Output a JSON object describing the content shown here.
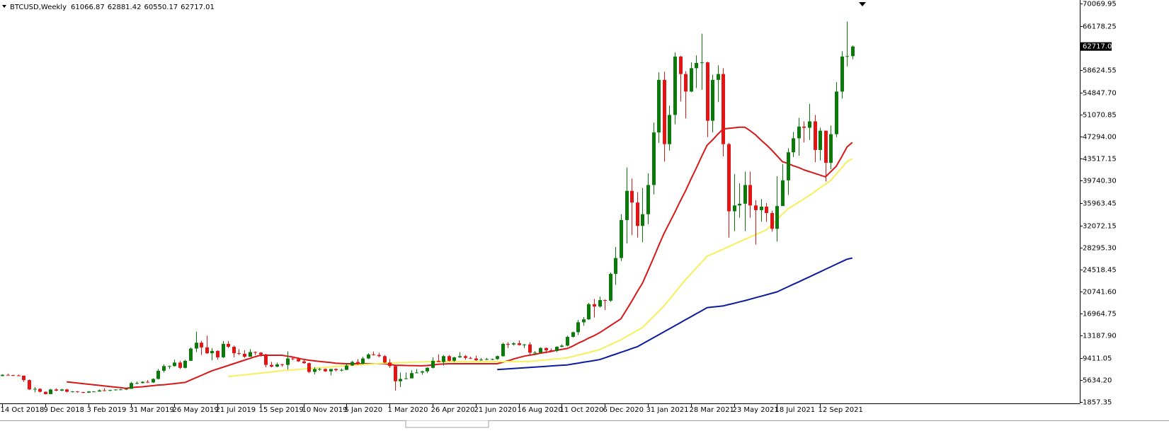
{
  "chart_data": {
    "type": "candlestick",
    "symbol": "BTCUSD,Weekly",
    "up_color": "#0b7a0b",
    "down_color": "#e31414",
    "categories": [
      "14 Oct 2018",
      null,
      null,
      null,
      null,
      null,
      null,
      null,
      "9 Dec 2018",
      null,
      null,
      null,
      null,
      null,
      null,
      null,
      "3 Feb 2019",
      null,
      null,
      null,
      null,
      null,
      null,
      null,
      "31 Mar 2019",
      null,
      null,
      null,
      null,
      null,
      null,
      null,
      "26 May 2019",
      null,
      null,
      null,
      null,
      null,
      null,
      null,
      "21 Jul 2019",
      null,
      null,
      null,
      null,
      null,
      null,
      null,
      "15 Sep 2019",
      null,
      null,
      null,
      null,
      null,
      null,
      null,
      "10 Nov 2019",
      null,
      null,
      null,
      null,
      null,
      null,
      null,
      "5 Jan 2020",
      null,
      null,
      null,
      null,
      null,
      null,
      null,
      "1 Mar 2020",
      null,
      null,
      null,
      null,
      null,
      null,
      null,
      "26 Apr 2020",
      null,
      null,
      null,
      null,
      null,
      null,
      null,
      "21 Jun 2020",
      null,
      null,
      null,
      null,
      null,
      null,
      null,
      "16 Aug 2020",
      null,
      null,
      null,
      null,
      null,
      null,
      null,
      "11 Oct 2020",
      null,
      null,
      null,
      null,
      null,
      null,
      null,
      "6 Dec 2020",
      null,
      null,
      null,
      null,
      null,
      null,
      null,
      "31 Jan 2021",
      null,
      null,
      null,
      null,
      null,
      null,
      null,
      "28 Mar 2021",
      null,
      null,
      null,
      null,
      null,
      null,
      null,
      "23 May 2021",
      null,
      null,
      null,
      null,
      null,
      null,
      null,
      "18 Jul 2021",
      null,
      null,
      null,
      null,
      null,
      null,
      null,
      "12 Sep 2021",
      null,
      null,
      null,
      null,
      null,
      null
    ],
    "open": [
      6300,
      6500,
      6450,
      6400,
      6350,
      5600,
      4000,
      4100,
      3600,
      3200,
      4000,
      3800,
      4000,
      3600,
      3650,
      3550,
      3450,
      3650,
      3650,
      3850,
      3800,
      3900,
      4000,
      4000,
      4100,
      5100,
      5100,
      5300,
      5200,
      5800,
      7200,
      8000,
      8000,
      8600,
      7700,
      8900,
      11000,
      12000,
      11200,
      10200,
      10600,
      9500,
      11800,
      11300,
      10200,
      10100,
      9600,
      10400,
      10300,
      10000,
      8200,
      7900,
      8300,
      8200,
      9300,
      9200,
      8800,
      8500,
      7000,
      7500,
      7500,
      7100,
      7500,
      7300,
      7350,
      8100,
      8700,
      8400,
      9300,
      10000,
      9900,
      9700,
      8600,
      8000,
      5400,
      5800,
      5900,
      6800,
      6900,
      7100,
      7700,
      8900,
      8700,
      9700,
      8900,
      9500,
      9700,
      9400,
      9300,
      9000,
      9100,
      9200,
      9200,
      9700,
      11800,
      11700,
      11900,
      11600,
      11700,
      10300,
      10300,
      11100,
      10700,
      10600,
      11300,
      11500,
      13000,
      13800,
      15500,
      16000,
      18600,
      18200,
      19300,
      19200,
      23800,
      26500,
      33000,
      38000,
      36000,
      32000,
      34000,
      39000,
      48000,
      57000,
      46000,
      51000,
      61000,
      58000,
      55000,
      59000,
      59900,
      60000,
      50000,
      57000,
      58000,
      46000,
      34500,
      35500,
      35800,
      39000,
      35500,
      34700,
      35300,
      34200,
      31500,
      35400,
      39800,
      44600,
      47000,
      49000,
      48800,
      49900,
      45000,
      48300,
      42800,
      47700,
      55000,
      61000,
      61066.87
    ],
    "high": [
      6600,
      6700,
      6500,
      6550,
      6400,
      5700,
      4400,
      4200,
      3650,
      4100,
      4200,
      4100,
      4100,
      3700,
      3700,
      3600,
      3700,
      3700,
      4000,
      4200,
      3950,
      4000,
      4100,
      4100,
      5300,
      5350,
      5400,
      5600,
      5900,
      7500,
      8300,
      8100,
      9100,
      8900,
      9100,
      11200,
      13900,
      12300,
      13200,
      11100,
      10700,
      12300,
      12300,
      11500,
      10900,
      10700,
      10900,
      10500,
      10400,
      10100,
      8700,
      8600,
      8400,
      10500,
      9500,
      9500,
      9000,
      8600,
      7800,
      7700,
      7600,
      7500,
      7600,
      7600,
      8400,
      8900,
      9200,
      9600,
      10200,
      10500,
      10300,
      9900,
      9200,
      8200,
      6900,
      6900,
      7300,
      7500,
      7200,
      7800,
      9500,
      10000,
      9900,
      9900,
      9600,
      10400,
      9900,
      9600,
      9800,
      9400,
      9400,
      9300,
      9800,
      12000,
      12100,
      12100,
      12400,
      11800,
      12100,
      10600,
      11200,
      11200,
      11000,
      11400,
      11700,
      13200,
      13900,
      15900,
      16400,
      18800,
      19500,
      19900,
      19400,
      24000,
      28400,
      34000,
      42000,
      40100,
      37800,
      38500,
      41000,
      49700,
      58300,
      58400,
      52600,
      61700,
      61100,
      58500,
      60000,
      61200,
      64900,
      60100,
      57900,
      59500,
      59000,
      46200,
      40900,
      39300,
      41300,
      41300,
      36400,
      36600,
      35900,
      34600,
      40500,
      42600,
      45300,
      48100,
      50500,
      49900,
      52900,
      51000,
      48800,
      48300,
      49200,
      56600,
      61900,
      67000,
      62881.42
    ],
    "low": [
      6250,
      6400,
      6300,
      6300,
      5300,
      3900,
      3500,
      3500,
      3150,
      3200,
      3700,
      3700,
      3500,
      3500,
      3450,
      3350,
      3400,
      3550,
      3600,
      3700,
      3700,
      3800,
      3900,
      3900,
      4100,
      4900,
      5000,
      5100,
      5100,
      5700,
      6900,
      7500,
      7900,
      7500,
      7600,
      8900,
      10400,
      9900,
      10100,
      9000,
      9100,
      9400,
      11100,
      9500,
      9900,
      9400,
      9600,
      9900,
      9600,
      7800,
      7800,
      7800,
      7900,
      7400,
      9000,
      8700,
      8400,
      6800,
      6600,
      7200,
      7000,
      6400,
      7100,
      7100,
      7300,
      8000,
      8200,
      8300,
      9200,
      9800,
      9500,
      8500,
      7700,
      3800,
      4400,
      5700,
      5900,
      6800,
      6500,
      6800,
      7600,
      8700,
      8100,
      8800,
      8700,
      9400,
      9100,
      9200,
      8900,
      8900,
      9000,
      9000,
      9100,
      9600,
      11100,
      11500,
      11500,
      11100,
      9900,
      9900,
      10200,
      10200,
      10500,
      10400,
      11200,
      11400,
      12900,
      13300,
      14900,
      15900,
      16300,
      18000,
      17600,
      19000,
      21900,
      26000,
      29000,
      30400,
      30000,
      29200,
      32300,
      37400,
      46200,
      43000,
      44900,
      49400,
      53300,
      50400,
      54900,
      55600,
      55300,
      47200,
      48000,
      53200,
      43900,
      30000,
      31100,
      33400,
      31100,
      33400,
      28800,
      32700,
      32700,
      31000,
      29300,
      35400,
      37300,
      43800,
      44000,
      46300,
      46700,
      42900,
      43200,
      39600,
      41700,
      47200,
      53800,
      59300,
      60550.17
    ],
    "close": [
      6500,
      6450,
      6400,
      6350,
      5600,
      4000,
      4100,
      3600,
      3200,
      4000,
      3800,
      4000,
      3600,
      3650,
      3550,
      3450,
      3650,
      3650,
      3850,
      3800,
      3900,
      4000,
      4000,
      4100,
      5100,
      5100,
      5300,
      5200,
      5800,
      7200,
      8000,
      8000,
      8600,
      7700,
      8900,
      11000,
      12000,
      11200,
      10200,
      10600,
      9500,
      11800,
      11300,
      10200,
      10100,
      9600,
      10400,
      10300,
      10000,
      8200,
      7900,
      8300,
      8200,
      9300,
      9200,
      8800,
      8500,
      7000,
      7500,
      7500,
      7100,
      7500,
      7300,
      7350,
      8100,
      8700,
      8400,
      9300,
      10000,
      9900,
      9700,
      8600,
      8000,
      5400,
      5800,
      5900,
      6800,
      6900,
      7100,
      7700,
      8900,
      8700,
      9700,
      8900,
      9500,
      9700,
      9400,
      9300,
      9000,
      9100,
      9200,
      9200,
      9700,
      11800,
      11700,
      11900,
      11600,
      11700,
      10300,
      10300,
      11100,
      10700,
      10600,
      11300,
      11500,
      13000,
      13800,
      15500,
      16000,
      18600,
      18200,
      19300,
      19200,
      23800,
      26500,
      33000,
      38000,
      36000,
      32000,
      34000,
      39000,
      48000,
      57000,
      46000,
      51000,
      61000,
      58000,
      55000,
      59000,
      59900,
      60000,
      50000,
      57000,
      58000,
      46000,
      34500,
      35500,
      35800,
      39000,
      35500,
      34700,
      35300,
      34200,
      31500,
      35400,
      39800,
      44600,
      47000,
      49000,
      48800,
      49900,
      45000,
      48300,
      42800,
      47700,
      55000,
      61000,
      61066.87,
      62717.01
    ],
    "overlays": [
      {
        "type": "line",
        "color": "#d81818",
        "values": [
          null,
          null,
          null,
          null,
          null,
          null,
          null,
          null,
          null,
          null,
          null,
          null,
          5300,
          5200,
          5100,
          5000,
          4900,
          4800,
          4700,
          4600,
          4500,
          4400,
          4300,
          4200,
          4300,
          4400,
          4450,
          4550,
          4650,
          4750,
          4800,
          4900,
          5000,
          5100,
          5200,
          5600,
          6000,
          6400,
          6800,
          7200,
          7500,
          7800,
          8100,
          8400,
          8700,
          9000,
          9300,
          9600,
          9850,
          9850,
          9850,
          9850,
          9850,
          9700,
          9550,
          9350,
          9150,
          9000,
          8900,
          8800,
          8700,
          8600,
          8500,
          8450,
          8400,
          8400,
          8400,
          8400,
          8400,
          8400,
          8400,
          8400,
          8300,
          8150,
          8130,
          8100,
          8080,
          8060,
          8050,
          8100,
          8200,
          8300,
          8350,
          8400,
          8400,
          8400,
          8400,
          8400,
          8400,
          8400,
          8400,
          8400,
          8400,
          8650,
          8900,
          9200,
          9450,
          9700,
          9850,
          10000,
          10200,
          10350,
          10500,
          10700,
          10850,
          11000,
          11400,
          11900,
          12300,
          12800,
          13200,
          13700,
          14300,
          14900,
          15500,
          16100,
          17600,
          19100,
          20700,
          22200,
          24300,
          26400,
          28600,
          30700,
          32500,
          34300,
          36200,
          38000,
          40000,
          41900,
          43900,
          45800,
          46700,
          47700,
          48600,
          48700,
          48800,
          48900,
          48900,
          48300,
          47600,
          46700,
          45900,
          45000,
          44000,
          43000,
          42700,
          42300,
          42000,
          41600,
          41300,
          41000,
          40700,
          40400,
          41300,
          42200,
          43800,
          45500,
          46300
        ]
      },
      {
        "type": "line",
        "color": "#f6f05a",
        "values": [
          null,
          null,
          null,
          null,
          null,
          null,
          null,
          null,
          null,
          null,
          null,
          null,
          null,
          null,
          null,
          null,
          null,
          null,
          null,
          null,
          null,
          null,
          null,
          null,
          null,
          null,
          null,
          null,
          null,
          null,
          null,
          null,
          null,
          null,
          null,
          null,
          null,
          null,
          null,
          null,
          null,
          null,
          6200,
          6300,
          6400,
          6500,
          6600,
          6700,
          6800,
          6900,
          7000,
          7100,
          7200,
          7270,
          7350,
          7420,
          7490,
          7560,
          7640,
          7710,
          7780,
          7850,
          7930,
          8000,
          8060,
          8120,
          8190,
          8250,
          8310,
          8380,
          8440,
          8500,
          8530,
          8560,
          8590,
          8620,
          8660,
          8690,
          8720,
          8750,
          8750,
          8750,
          8750,
          8750,
          8750,
          8750,
          8750,
          8750,
          8750,
          8750,
          8750,
          8750,
          8750,
          8760,
          8770,
          8780,
          8780,
          8790,
          8800,
          8890,
          8970,
          9060,
          9140,
          9230,
          9310,
          9400,
          9630,
          9870,
          10100,
          10330,
          10570,
          10800,
          11230,
          11650,
          12080,
          12500,
          13030,
          13550,
          14080,
          14600,
          15530,
          16450,
          17380,
          18300,
          19430,
          20550,
          21680,
          22800,
          23800,
          24800,
          25800,
          26800,
          27200,
          27600,
          28000,
          28430,
          28850,
          29280,
          29700,
          30100,
          30500,
          30900,
          31300,
          32200,
          33100,
          34000,
          34900,
          35480,
          36050,
          36630,
          37200,
          37850,
          38500,
          39150,
          39800,
          40870,
          41930,
          43000,
          43500
        ]
      },
      {
        "type": "line",
        "color": "#0c1c9c",
        "values": [
          null,
          null,
          null,
          null,
          null,
          null,
          null,
          null,
          null,
          null,
          null,
          null,
          null,
          null,
          null,
          null,
          null,
          null,
          null,
          null,
          null,
          null,
          null,
          null,
          null,
          null,
          null,
          null,
          null,
          null,
          null,
          null,
          null,
          null,
          null,
          null,
          null,
          null,
          null,
          null,
          null,
          null,
          null,
          null,
          null,
          null,
          null,
          null,
          null,
          null,
          null,
          null,
          null,
          null,
          null,
          null,
          null,
          null,
          null,
          null,
          null,
          null,
          null,
          null,
          null,
          null,
          null,
          null,
          null,
          null,
          null,
          null,
          null,
          null,
          null,
          null,
          null,
          null,
          null,
          null,
          null,
          null,
          null,
          null,
          null,
          null,
          null,
          null,
          null,
          null,
          null,
          null,
          7400,
          7460,
          7520,
          7580,
          7650,
          7710,
          7770,
          7830,
          7890,
          7950,
          8020,
          8080,
          8140,
          8200,
          8350,
          8500,
          8650,
          8800,
          8950,
          9100,
          9410,
          9730,
          10040,
          10360,
          10670,
          10990,
          11300,
          11810,
          12330,
          12840,
          13360,
          13870,
          14390,
          14900,
          15420,
          15930,
          16450,
          16970,
          17480,
          18000,
          18100,
          18200,
          18300,
          18530,
          18750,
          18980,
          19200,
          19450,
          19700,
          19950,
          20200,
          20450,
          20700,
          21130,
          21560,
          21990,
          22410,
          22840,
          23270,
          23700,
          24130,
          24570,
          25000,
          25430,
          25870,
          26300,
          26500
        ]
      }
    ],
    "ylim": [
      1857.35,
      70069.95
    ],
    "yticks": [
      1857.35,
      {
        "value": 5634.2,
        "label": "5634.20"
      },
      9411.05,
      {
        "value": 13187.9,
        "label": "13187.90"
      },
      16964.75,
      {
        "value": 20741.6,
        "label": "20741.60"
      },
      24518.45,
      {
        "value": 28295.3,
        "label": "28295.30"
      },
      32072.15,
      35963.45,
      {
        "value": 39740.3,
        "label": "39740.30"
      },
      43517.15,
      {
        "value": 47294,
        "label": "47294.00"
      },
      51070.85,
      {
        "value": 54847.7,
        "label": "54847.70"
      },
      58624.55,
      66178.25,
      70069.95
    ],
    "grid": false
  }
}
